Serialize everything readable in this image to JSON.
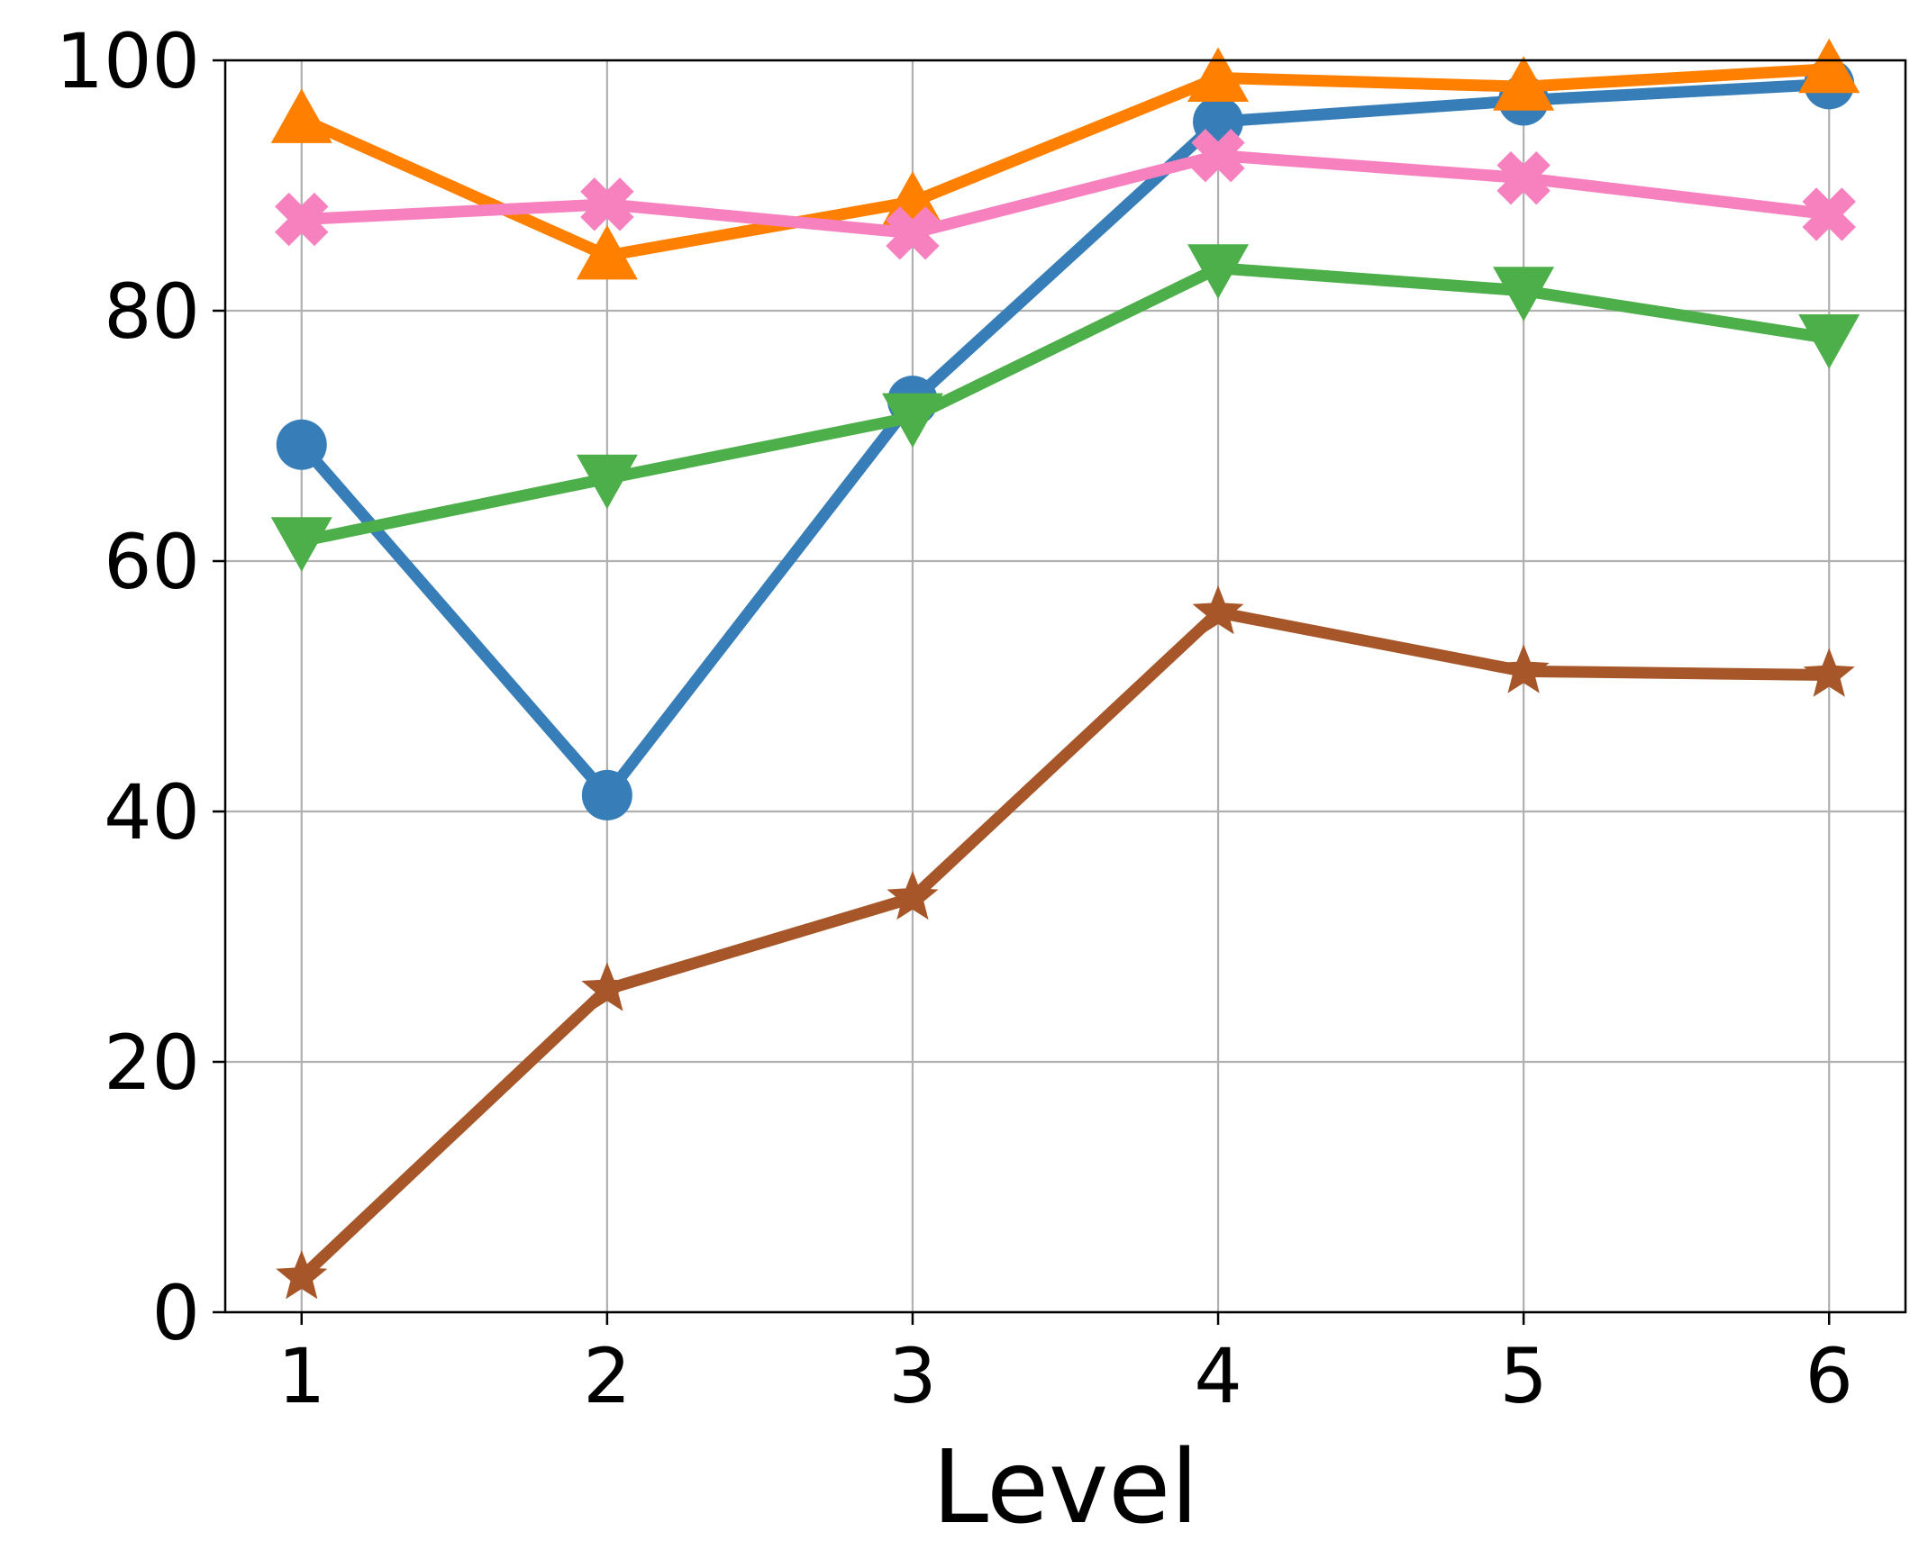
{
  "chart_data": {
    "type": "line",
    "title": "",
    "xlabel": "Level",
    "ylabel": "",
    "x": [
      1,
      2,
      3,
      4,
      5,
      6
    ],
    "xticks": [
      "1",
      "2",
      "3",
      "4",
      "5",
      "6"
    ],
    "yticks": [
      "0",
      "20",
      "40",
      "60",
      "80",
      "100"
    ],
    "xlim": [
      0.75,
      6.25
    ],
    "ylim": [
      0,
      100
    ],
    "grid": true,
    "legend": "none",
    "series": [
      {
        "values": [
          69.3,
          41.3,
          72.8,
          95.1,
          96.8,
          98.1
        ],
        "color": "#377eb8",
        "marker": "circle"
      },
      {
        "values": [
          95.3,
          84.4,
          88.7,
          98.6,
          97.9,
          99.3
        ],
        "color": "#ff7f00",
        "marker": "triangle-up"
      },
      {
        "values": [
          87.3,
          88.5,
          86.2,
          92.4,
          90.6,
          87.7
        ],
        "color": "#f781bf",
        "marker": "x-filled"
      },
      {
        "values": [
          61.6,
          66.6,
          71.5,
          83.4,
          81.6,
          77.8
        ],
        "color": "#4daf4a",
        "marker": "triangle-down"
      },
      {
        "values": [
          2.8,
          25.8,
          33.1,
          55.9,
          51.2,
          50.9
        ],
        "color": "#a65628",
        "marker": "star"
      }
    ]
  }
}
